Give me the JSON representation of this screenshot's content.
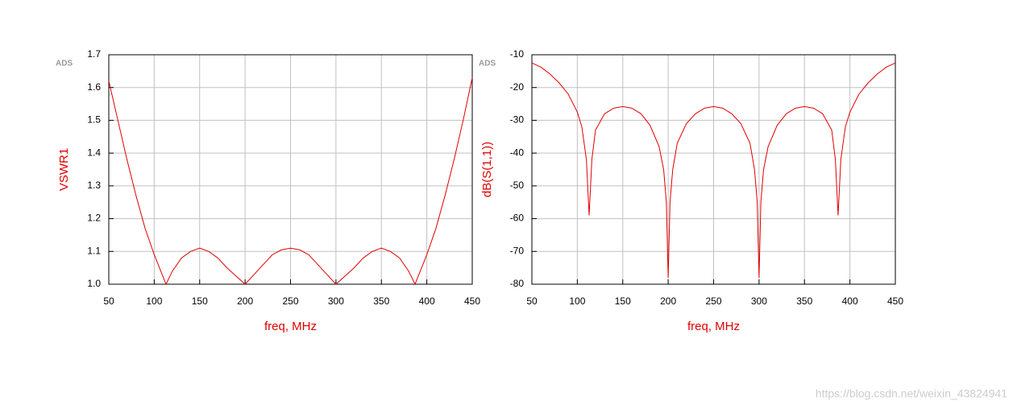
{
  "chart_data": [
    {
      "type": "line",
      "logo": "ADS",
      "x_label": "freq, MHz",
      "y_label": "VSWR1",
      "color": "#e00000",
      "grid": true,
      "xlim": [
        50,
        450
      ],
      "xticks": [
        50,
        100,
        150,
        200,
        250,
        300,
        350,
        400,
        450
      ],
      "ylim": [
        1,
        1.7
      ],
      "yticks": [
        {
          "value": 1,
          "label": "1.0"
        },
        1.1,
        1.2,
        1.3,
        1.4,
        1.5,
        1.6,
        1.7
      ],
      "x": [
        50,
        60,
        70,
        80,
        90,
        100,
        113,
        120,
        130,
        140,
        150,
        160,
        170,
        180,
        190,
        200,
        210,
        220,
        230,
        240,
        250,
        260,
        270,
        280,
        290,
        300,
        310,
        320,
        330,
        340,
        350,
        360,
        370,
        380,
        387,
        400,
        410,
        420,
        430,
        440,
        450
      ],
      "values": [
        1.62,
        1.5,
        1.38,
        1.27,
        1.17,
        1.09,
        1.0,
        1.04,
        1.08,
        1.1,
        1.11,
        1.1,
        1.08,
        1.05,
        1.025,
        1.0,
        1.03,
        1.06,
        1.09,
        1.105,
        1.11,
        1.105,
        1.09,
        1.06,
        1.03,
        1.0,
        1.025,
        1.05,
        1.08,
        1.1,
        1.11,
        1.1,
        1.08,
        1.04,
        1.0,
        1.09,
        1.17,
        1.27,
        1.38,
        1.5,
        1.63
      ]
    },
    {
      "type": "line",
      "logo": "ADS",
      "x_label": "freq, MHz",
      "y_label": "dB(S(1,1))",
      "color": "#e00000",
      "grid": true,
      "xlim": [
        50,
        450
      ],
      "xticks": [
        50,
        100,
        150,
        200,
        250,
        300,
        350,
        400,
        450
      ],
      "ylim": [
        -80,
        -10
      ],
      "yticks": [
        -80,
        -70,
        -60,
        -50,
        -40,
        -30,
        -20,
        -10
      ],
      "x": [
        50,
        60,
        70,
        80,
        90,
        100,
        105,
        110,
        113,
        116,
        120,
        130,
        140,
        150,
        160,
        170,
        180,
        190,
        195,
        198,
        200,
        202,
        205,
        210,
        220,
        230,
        240,
        250,
        260,
        270,
        280,
        290,
        295,
        298,
        300,
        302,
        305,
        310,
        320,
        330,
        340,
        350,
        360,
        370,
        380,
        384,
        387,
        390,
        395,
        400,
        410,
        420,
        430,
        440,
        450
      ],
      "values": [
        -12.5,
        -13.8,
        -15.9,
        -18.6,
        -22,
        -27.5,
        -32,
        -42,
        -59,
        -42,
        -33,
        -28,
        -26.3,
        -25.8,
        -26.3,
        -28,
        -31.5,
        -38,
        -45,
        -55,
        -78,
        -55,
        -45,
        -37,
        -31,
        -28,
        -26.3,
        -25.8,
        -26.3,
        -28,
        -31,
        -37,
        -45,
        -55,
        -78,
        -55,
        -45,
        -38,
        -31.5,
        -28,
        -26.3,
        -25.8,
        -26.3,
        -28,
        -33,
        -42,
        -59,
        -42,
        -32,
        -27.5,
        -22,
        -18.6,
        -15.9,
        -13.8,
        -12.5
      ]
    }
  ],
  "watermark": "https://blog.csdn.net/weixin_43824941"
}
